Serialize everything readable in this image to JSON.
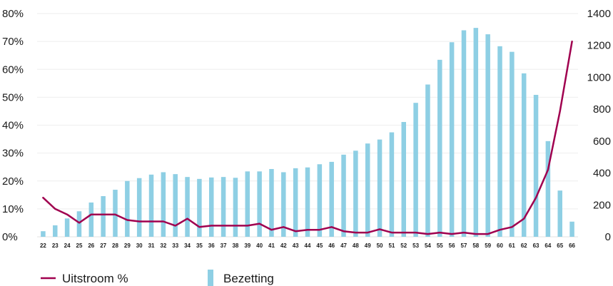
{
  "chart_data": {
    "type": "bar+line",
    "colors": {
      "bar": "#8ecfe4",
      "line": "#a0004f",
      "grid": "#eeeeee",
      "axis": "#e0e0e0"
    },
    "categories": [
      "22",
      "23",
      "24",
      "25",
      "26",
      "27",
      "28",
      "29",
      "30",
      "31",
      "32",
      "33",
      "34",
      "35",
      "36",
      "37",
      "38",
      "39",
      "40",
      "41",
      "42",
      "43",
      "44",
      "45",
      "46",
      "47",
      "48",
      "49",
      "50",
      "51",
      "52",
      "53",
      "54",
      "55",
      "56",
      "57",
      "58",
      "59",
      "60",
      "61",
      "62",
      "63",
      "64",
      "65",
      "66"
    ],
    "series": [
      {
        "name": "Uitstroom %",
        "type": "line",
        "axis": "left",
        "values": [
          14,
          10,
          8,
          5,
          8,
          8,
          8,
          6,
          5.5,
          5.5,
          5.5,
          4,
          6.5,
          3.5,
          4,
          4,
          4,
          4,
          4.7,
          2.5,
          3.5,
          2,
          2.5,
          2.5,
          3.5,
          2,
          1.5,
          1.5,
          2.7,
          1.5,
          1.5,
          1.5,
          1,
          1.5,
          1,
          1.5,
          1,
          1,
          2.5,
          3.5,
          6.5,
          14,
          24,
          45,
          70
        ]
      },
      {
        "name": "Bezetting",
        "type": "bar",
        "axis": "right",
        "values": [
          35,
          72,
          115,
          160,
          215,
          255,
          295,
          350,
          368,
          390,
          405,
          393,
          375,
          363,
          372,
          375,
          370,
          410,
          410,
          425,
          405,
          430,
          435,
          455,
          470,
          515,
          540,
          585,
          610,
          655,
          720,
          840,
          955,
          1110,
          1220,
          1295,
          1310,
          1270,
          1195,
          1160,
          1025,
          890,
          600,
          290,
          95
        ]
      }
    ],
    "y_left": {
      "min": 0,
      "max": 80,
      "ticks": [
        "0%",
        "10%",
        "20%",
        "30%",
        "40%",
        "50%",
        "60%",
        "70%",
        "80%"
      ]
    },
    "y_right": {
      "min": 0,
      "max": 1400,
      "ticks": [
        "0",
        "200",
        "400",
        "600",
        "800",
        "1000",
        "1200",
        "1400"
      ]
    },
    "grid": true,
    "legend": {
      "position": "bottom-left",
      "items": [
        "Uitstroom %",
        "Bezetting"
      ]
    }
  }
}
